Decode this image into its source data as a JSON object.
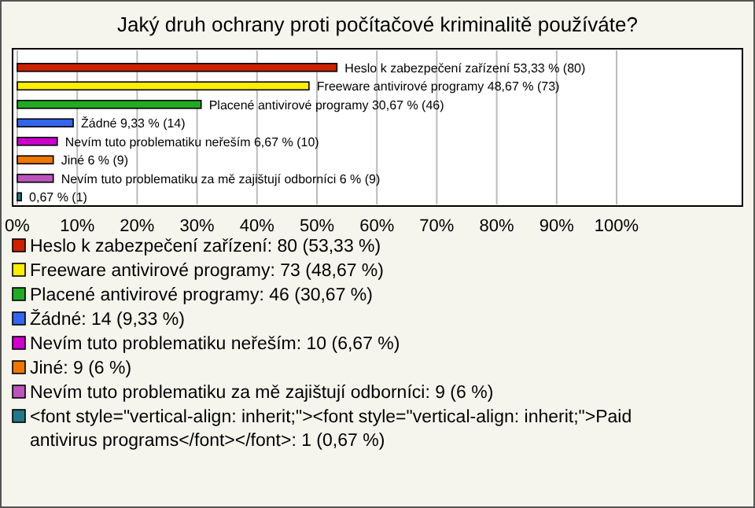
{
  "chart_data": {
    "type": "bar",
    "orientation": "horizontal",
    "title": "Jaký druh ochrany proti počítačové kriminalitě používáte?",
    "categories": [
      "Heslo k zabezpečení zařízení",
      "Freeware antivirové programy",
      "Placené antivirové programy",
      "Žádné",
      "Nevím tuto problematiku neřeším",
      "Jiné",
      "Nevím tuto problematiku za mě zajištují odborníci",
      null
    ],
    "values": [
      53.33,
      48.67,
      30.67,
      9.33,
      6.67,
      6,
      6,
      0.67
    ],
    "value_labels": [
      "53,33 % (80)",
      "48,67 % (73)",
      "30,67 % (46)",
      "9,33 % (14)",
      "6,67 % (10)",
      "6 % (9)",
      "6 % (9)",
      "0,67 % (1)"
    ],
    "colors": [
      "#cc2200",
      "#ffee00",
      "#22aa22",
      "#3366ee",
      "#cc00cc",
      "#ee7700",
      "#bb55bb",
      "#227788"
    ],
    "xlim": [
      0,
      121
    ],
    "xticks": [
      {
        "value": 0,
        "label": "0%"
      },
      {
        "value": 10,
        "label": "10%"
      },
      {
        "value": 20,
        "label": "20%"
      },
      {
        "value": 30,
        "label": "30%"
      },
      {
        "value": 40,
        "label": "40%"
      },
      {
        "value": 50,
        "label": "50%"
      },
      {
        "value": 60,
        "label": "60%"
      },
      {
        "value": 70,
        "label": "70%"
      },
      {
        "value": 80,
        "label": "80%"
      },
      {
        "value": 90,
        "label": "90%"
      },
      {
        "value": 100,
        "label": "100%"
      }
    ],
    "grid": "x",
    "annotations": [
      "Heslo k zabezpečení zařízení: 80 (53,33 %)",
      "Freeware antivirové programy: 73 (48,67 %)",
      "Placené antivirové programy: 46 (30,67 %)",
      "Žádné: 14 (9,33 %)",
      "Nevím tuto problematiku neřeším: 10 (6,67 %)",
      "Jiné: 9 (6 %)",
      "Nevím tuto problematiku za mě zajištují odborníci: 9 (6 %)",
      "<font style=\"vertical-align: inherit;\"><font style=\"vertical-align: inherit;\">Paid antivirus programs</font></font>: 1 (0,67 %)"
    ]
  }
}
